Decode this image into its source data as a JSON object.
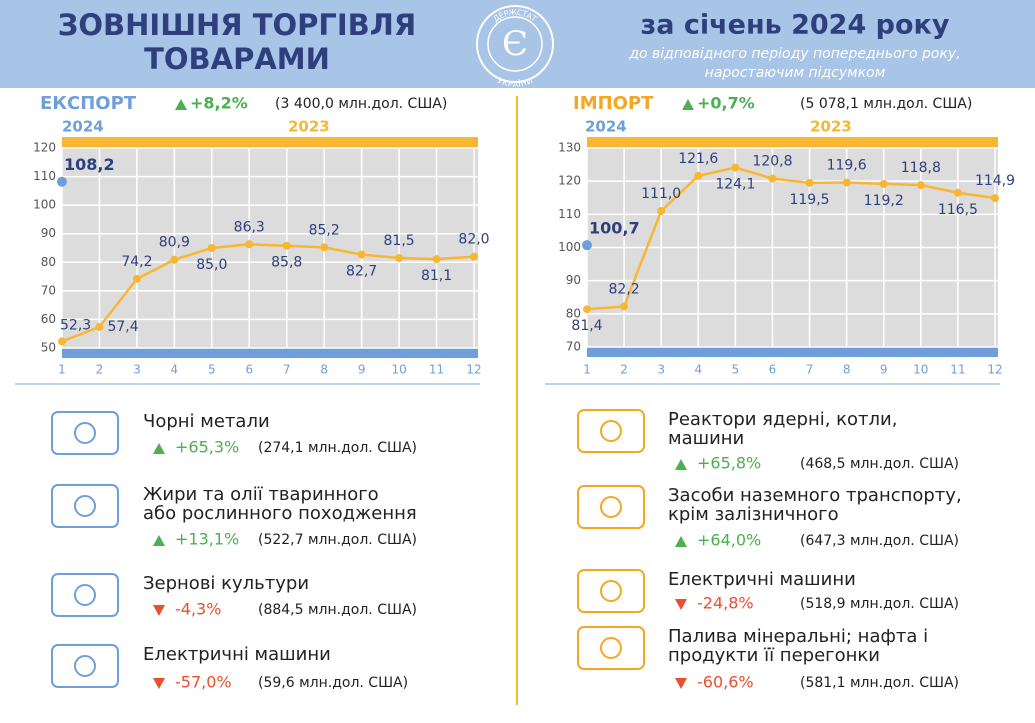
{
  "header": {
    "title": [
      "ЗОВНІШНЯ ТОРГІВЛЯ",
      "ТОВАРАМИ"
    ],
    "logo": [
      "ДЕРЖСТАТ",
      "УКРАЇНИ"
    ],
    "period": "за січень 2024 року",
    "note": [
      "до відповідного періоду попереднього року,",
      "наростаючим підсумком"
    ]
  },
  "chart_data": [
    {
      "type": "line",
      "title": "ЕКСПОРТ",
      "change": "+8,2%",
      "total": "(3 400,0 млн.дол. США)",
      "x": [
        1,
        2,
        3,
        4,
        5,
        6,
        7,
        8,
        9,
        10,
        11,
        12
      ],
      "xlim": [
        1,
        12
      ],
      "xticks": [
        1,
        2,
        3,
        4,
        5,
        6,
        7,
        8,
        9,
        10,
        11,
        12
      ],
      "ylim": [
        50,
        120
      ],
      "yticks": [
        50,
        60,
        70,
        80,
        90,
        100,
        110,
        120
      ],
      "series": [
        {
          "name": "2024",
          "color": "#6f9fdb",
          "values": [
            108.2,
            null,
            null,
            null,
            null,
            null,
            null,
            null,
            null,
            null,
            null,
            null
          ],
          "value_labels": [
            "108,2",
            null,
            null,
            null,
            null,
            null,
            null,
            null,
            null,
            null,
            null,
            null
          ]
        },
        {
          "name": "2023",
          "color": "#f7b733",
          "values": [
            52.3,
            57.4,
            74.2,
            80.9,
            85.0,
            86.3,
            85.8,
            85.2,
            82.7,
            81.5,
            81.1,
            82.0
          ],
          "value_labels": [
            "52,3",
            "57,4",
            "74,2",
            "80,9",
            "85,0",
            "86,3",
            "85,8",
            "85,2",
            "82,7",
            "81,5",
            "81,1",
            "82,0"
          ]
        }
      ]
    },
    {
      "type": "line",
      "title": "ІМПОРТ",
      "change": "+0,7%",
      "total": "(5 078,1 млн.дол. США)",
      "x": [
        1,
        2,
        3,
        4,
        5,
        6,
        7,
        8,
        9,
        10,
        11,
        12
      ],
      "xlim": [
        1,
        12
      ],
      "xticks": [
        1,
        2,
        3,
        4,
        5,
        6,
        7,
        8,
        9,
        10,
        11,
        12
      ],
      "ylim": [
        70,
        130
      ],
      "yticks": [
        70,
        80,
        90,
        100,
        110,
        120,
        130
      ],
      "series": [
        {
          "name": "2024",
          "color": "#6f9fdb",
          "values": [
            100.7,
            null,
            null,
            null,
            null,
            null,
            null,
            null,
            null,
            null,
            null,
            null
          ],
          "value_labels": [
            "100,7",
            null,
            null,
            null,
            null,
            null,
            null,
            null,
            null,
            null,
            null,
            null
          ]
        },
        {
          "name": "2023",
          "color": "#f7b733",
          "values": [
            81.4,
            82.2,
            111.0,
            121.6,
            124.1,
            120.8,
            119.5,
            119.6,
            119.2,
            118.8,
            116.5,
            114.9
          ],
          "value_labels": [
            "81,4",
            "82,2",
            "111,0",
            "121,6",
            "124,1",
            "120,8",
            "119,5",
            "119,6",
            "119,2",
            "118,8",
            "116,5",
            "114,9"
          ]
        }
      ]
    }
  ],
  "export_items": [
    {
      "name": [
        "Чорні метали"
      ],
      "change": "+65,3%",
      "amount": "(274,1 млн.дол. США)"
    },
    {
      "name": [
        "Жири та олії тваринного",
        "або рослинного походження"
      ],
      "change": "+13,1%",
      "amount": "(522,7 млн.дол. США)"
    },
    {
      "name": [
        "Зернові культури"
      ],
      "change": "-4,3%",
      "amount": "(884,5 млн.дол. США)"
    },
    {
      "name": [
        "Електричні машини"
      ],
      "change": "-57,0%",
      "amount": "(59,6 млн.дол. США)"
    }
  ],
  "import_items": [
    {
      "name": [
        "Реактори ядерні, котли,",
        "машини"
      ],
      "change": "+65,8%",
      "amount": "(468,5 млн.дол. США)"
    },
    {
      "name": [
        "Засоби наземного транспорту,",
        "крім залізничного"
      ],
      "change": "+64,0%",
      "amount": "(647,3 млн.дол. США)"
    },
    {
      "name": [
        "Електричні машини"
      ],
      "change": "-24,8%",
      "amount": "(518,9 млн.дол. США)"
    },
    {
      "name": [
        "Палива мінеральні; нафта і",
        "продукти її перегонки"
      ],
      "change": "-60,6%",
      "amount": "(581,1 млн.дол. США)"
    }
  ]
}
